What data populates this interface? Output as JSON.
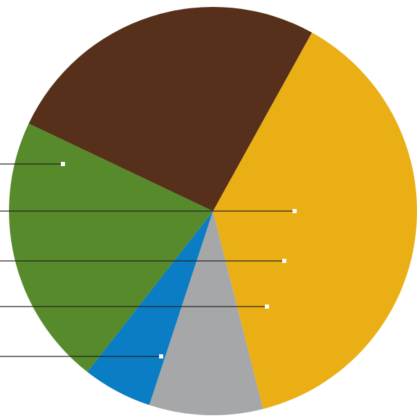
{
  "chart_data": {
    "type": "pie",
    "title": "",
    "legend": "none",
    "labels_shown": false,
    "slices": [
      {
        "value": 38.0,
        "color": "#EBAF16"
      },
      {
        "value": 9.0,
        "color": "#A6A7A9"
      },
      {
        "value": 5.5,
        "color": "#0A7DC4"
      },
      {
        "value": 21.5,
        "color": "#568A2B"
      },
      {
        "value": 26.0,
        "color": "#56301A"
      }
    ],
    "leader_line_color": "#222222",
    "marker_color": "#ffffff"
  }
}
